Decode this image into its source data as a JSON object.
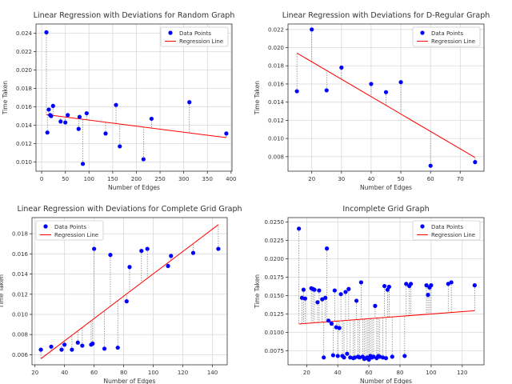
{
  "chart_data": [
    {
      "type": "scatter",
      "title": "Linear Regression with Deviations for Random Graph",
      "xlabel": "Number of Edges",
      "ylabel": "Time Taken",
      "xlim": [
        -12,
        402
      ],
      "ylim": [
        0.009,
        0.025
      ],
      "xticks": [
        0,
        50,
        100,
        150,
        200,
        250,
        300,
        350,
        400
      ],
      "yticks": [
        0.01,
        0.012,
        0.014,
        0.016,
        0.018,
        0.02,
        0.022,
        0.024
      ],
      "grid": true,
      "legend": "top-right",
      "series": [
        {
          "name": "Data Points",
          "kind": "points",
          "color": "#0000ff",
          "x": [
            10,
            12,
            15,
            18,
            20,
            24,
            40,
            50,
            55,
            78,
            80,
            87,
            95,
            135,
            157,
            165,
            215,
            232,
            312,
            390
          ],
          "y": [
            0.0241,
            0.0132,
            0.0157,
            0.0151,
            0.015,
            0.0161,
            0.0144,
            0.0143,
            0.0151,
            0.0136,
            0.0149,
            0.0098,
            0.0153,
            0.0131,
            0.0162,
            0.0117,
            0.0103,
            0.0147,
            0.0165,
            0.0131
          ]
        },
        {
          "name": "Regression Line",
          "kind": "line",
          "color": "#ff0000",
          "x": [
            10,
            390
          ],
          "y": [
            0.01515,
            0.01265
          ]
        }
      ]
    },
    {
      "type": "scatter",
      "title": "Linear Regression with Deviations for D-Regular Graph",
      "xlabel": "Number of Edges",
      "ylabel": "Time Taken",
      "xlim": [
        12,
        78
      ],
      "ylim": [
        0.0064,
        0.0226
      ],
      "xticks": [
        20,
        30,
        40,
        50,
        60,
        70
      ],
      "yticks": [
        0.008,
        0.01,
        0.012,
        0.014,
        0.016,
        0.018,
        0.02,
        0.022
      ],
      "grid": true,
      "legend": "top-right",
      "series": [
        {
          "name": "Data Points",
          "kind": "points",
          "color": "#0000ff",
          "x": [
            15,
            20,
            25,
            30,
            40,
            45,
            50,
            60,
            75
          ],
          "y": [
            0.0152,
            0.022,
            0.0153,
            0.0178,
            0.016,
            0.0151,
            0.0162,
            0.007,
            0.0074
          ]
        },
        {
          "name": "Regression Line",
          "kind": "line",
          "color": "#ff0000",
          "x": [
            15,
            75
          ],
          "y": [
            0.0194,
            0.0079
          ]
        }
      ]
    },
    {
      "type": "scatter",
      "title": "Linear Regression with Deviations for Complete Grid Graph",
      "xlabel": "Number of Edges",
      "ylabel": "Time Taken",
      "xlim": [
        18,
        150
      ],
      "ylim": [
        0.005,
        0.0196
      ],
      "xticks": [
        20,
        40,
        60,
        80,
        100,
        120,
        140
      ],
      "yticks": [
        0.006,
        0.008,
        0.01,
        0.012,
        0.014,
        0.016,
        0.018
      ],
      "grid": true,
      "legend": "top-left",
      "series": [
        {
          "name": "Data Points",
          "kind": "points",
          "color": "#0000ff",
          "x": [
            24,
            31,
            38,
            40,
            45,
            49,
            52,
            58,
            59,
            60,
            67,
            71,
            76,
            82,
            84,
            92,
            96,
            110,
            112,
            127,
            144
          ],
          "y": [
            0.0065,
            0.0068,
            0.0065,
            0.007,
            0.0065,
            0.0072,
            0.0069,
            0.007,
            0.0071,
            0.0165,
            0.0066,
            0.0159,
            0.0067,
            0.0113,
            0.0147,
            0.0163,
            0.0165,
            0.0148,
            0.0158,
            0.0161,
            0.0165
          ]
        },
        {
          "name": "Regression Line",
          "kind": "line",
          "color": "#ff0000",
          "x": [
            24,
            144
          ],
          "y": [
            0.0056,
            0.0189
          ]
        }
      ]
    },
    {
      "type": "scatter",
      "title": "Incomplete Grid Graph",
      "xlabel": "Number of Edges",
      "ylabel": "Time Taken",
      "xlim": [
        8,
        134
      ],
      "ylim": [
        0.0056,
        0.0256
      ],
      "xticks": [
        20,
        40,
        60,
        80,
        100,
        120
      ],
      "yticks": [
        0.0075,
        0.01,
        0.0125,
        0.015,
        0.0175,
        0.02,
        0.0225,
        0.025
      ],
      "grid": true,
      "legend": "top-right",
      "series": [
        {
          "name": "Data Points",
          "kind": "points",
          "color": "#0000ff",
          "x": [
            15,
            17,
            18,
            19,
            23,
            24,
            25,
            27,
            28,
            30,
            31,
            32,
            33,
            34,
            36,
            37,
            38,
            39,
            40,
            41,
            42,
            43,
            44,
            45,
            46,
            47,
            48,
            50,
            51,
            52,
            53,
            54,
            55,
            56,
            57,
            58,
            59,
            60,
            61,
            62,
            63,
            64,
            65,
            66,
            67,
            69,
            70,
            71,
            72,
            73,
            75,
            83,
            84,
            86,
            87,
            97,
            98,
            99,
            100,
            111,
            113,
            128
          ],
          "y": [
            0.0241,
            0.0147,
            0.0158,
            0.0146,
            0.016,
            0.0159,
            0.0158,
            0.0141,
            0.0157,
            0.0145,
            0.0066,
            0.0147,
            0.0214,
            0.0116,
            0.0112,
            0.0069,
            0.0157,
            0.0107,
            0.0068,
            0.0106,
            0.0152,
            0.0068,
            0.0066,
            0.0155,
            0.0071,
            0.0159,
            0.0066,
            0.0065,
            0.0066,
            0.0143,
            0.0067,
            0.0066,
            0.0168,
            0.0067,
            0.0064,
            0.0065,
            0.0066,
            0.0063,
            0.0068,
            0.0066,
            0.0067,
            0.0136,
            0.0065,
            0.0068,
            0.0067,
            0.0066,
            0.0163,
            0.0065,
            0.0158,
            0.0162,
            0.0067,
            0.0068,
            0.0166,
            0.0163,
            0.0166,
            0.0164,
            0.0151,
            0.0161,
            0.0164,
            0.0166,
            0.0168,
            0.0164
          ]
        },
        {
          "name": "Regression Line",
          "kind": "line",
          "color": "#ff0000",
          "x": [
            15,
            128
          ],
          "y": [
            0.01115,
            0.01295
          ]
        }
      ]
    }
  ]
}
